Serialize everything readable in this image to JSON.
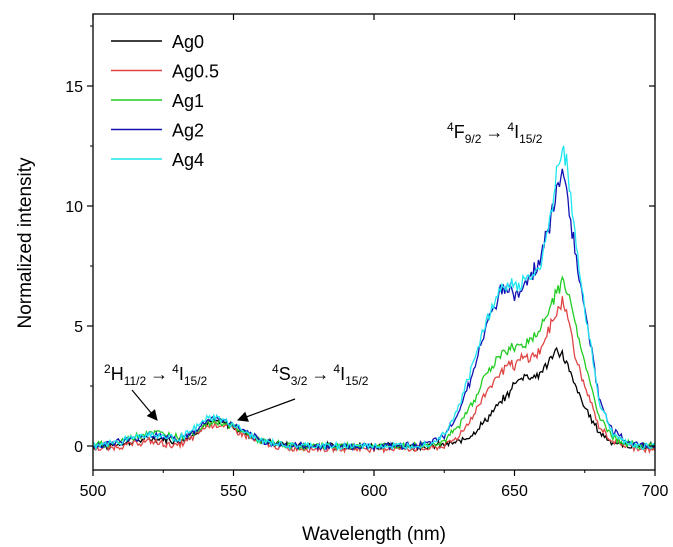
{
  "chart_data": {
    "type": "line",
    "xlabel": "Wavelength (nm)",
    "ylabel": "Normalized intensity",
    "xlim": [
      500,
      700
    ],
    "ylim": [
      -1,
      18
    ],
    "xticks": [
      500,
      550,
      600,
      650,
      700
    ],
    "yticks": [
      0,
      5,
      10,
      15
    ],
    "tick_labels_x": [
      "500",
      "550",
      "600",
      "650",
      "700"
    ],
    "tick_labels_y": [
      "0",
      "5",
      "10",
      "15"
    ],
    "grid": false,
    "legend_position": "top-left",
    "x": [
      500,
      505,
      510,
      515,
      520,
      525,
      530,
      535,
      540,
      543,
      545,
      550,
      555,
      560,
      565,
      570,
      575,
      580,
      590,
      600,
      610,
      620,
      625,
      630,
      635,
      640,
      645,
      648,
      650,
      652,
      655,
      658,
      660,
      663,
      665,
      667,
      668,
      670,
      672,
      675,
      678,
      680,
      685,
      690,
      695,
      700
    ],
    "series": [
      {
        "name": "Ag0",
        "color": "#000000",
        "values": [
          0.0,
          0.0,
          0.1,
          0.2,
          0.3,
          0.3,
          0.2,
          0.4,
          0.9,
          1.0,
          1.0,
          0.8,
          0.5,
          0.2,
          0.1,
          0.0,
          0.0,
          0.0,
          0.0,
          0.0,
          0.0,
          0.0,
          0.05,
          0.15,
          0.5,
          1.1,
          1.8,
          2.2,
          2.6,
          2.85,
          2.95,
          2.9,
          3.2,
          3.6,
          3.9,
          3.85,
          3.6,
          3.0,
          2.4,
          1.6,
          1.0,
          0.6,
          0.15,
          0.0,
          0.0,
          0.0
        ]
      },
      {
        "name": "Ag0.5",
        "color": "#e04545",
        "values": [
          -0.1,
          -0.1,
          0.0,
          0.1,
          0.2,
          0.1,
          0.0,
          0.3,
          0.8,
          0.9,
          0.9,
          0.7,
          0.4,
          0.1,
          0.0,
          -0.1,
          -0.1,
          -0.1,
          -0.1,
          -0.1,
          -0.1,
          -0.1,
          0.0,
          0.4,
          1.2,
          2.3,
          3.1,
          3.4,
          3.3,
          3.6,
          3.7,
          3.8,
          4.2,
          5.0,
          5.6,
          6.1,
          5.8,
          4.8,
          3.6,
          2.5,
          1.5,
          0.8,
          0.2,
          0.0,
          -0.1,
          -0.2
        ]
      },
      {
        "name": "Ag1",
        "color": "#22cc22",
        "values": [
          0.0,
          0.1,
          0.2,
          0.4,
          0.6,
          0.5,
          0.4,
          0.5,
          0.9,
          1.0,
          1.0,
          0.8,
          0.5,
          0.2,
          0.1,
          0.0,
          0.0,
          0.0,
          0.0,
          0.0,
          0.0,
          0.05,
          0.2,
          0.8,
          1.8,
          3.0,
          3.8,
          4.0,
          4.1,
          4.2,
          4.4,
          4.6,
          5.0,
          5.8,
          6.5,
          6.9,
          6.7,
          6.0,
          4.8,
          3.5,
          2.2,
          1.2,
          0.4,
          0.1,
          0.0,
          0.0
        ]
      },
      {
        "name": "Ag2",
        "color": "#1212b4",
        "values": [
          0.0,
          0.1,
          0.2,
          0.3,
          0.5,
          0.4,
          0.3,
          0.5,
          1.0,
          1.2,
          1.1,
          0.9,
          0.5,
          0.2,
          0.1,
          0.0,
          0.0,
          0.0,
          0.0,
          0.0,
          0.0,
          0.1,
          0.4,
          1.4,
          3.0,
          5.0,
          6.4,
          6.6,
          6.3,
          6.5,
          7.0,
          7.4,
          8.2,
          9.5,
          10.6,
          11.3,
          10.9,
          9.5,
          7.8,
          5.6,
          3.6,
          2.0,
          0.6,
          0.2,
          0.0,
          0.0
        ]
      },
      {
        "name": "Ag4",
        "color": "#1ee6f0",
        "values": [
          0.0,
          0.1,
          0.2,
          0.4,
          0.5,
          0.4,
          0.3,
          0.6,
          1.1,
          1.2,
          1.1,
          0.9,
          0.5,
          0.2,
          0.1,
          0.0,
          0.0,
          0.0,
          0.0,
          0.0,
          0.0,
          0.1,
          0.5,
          1.6,
          3.3,
          5.2,
          6.6,
          6.8,
          6.6,
          6.7,
          7.0,
          7.2,
          8.0,
          9.6,
          11.2,
          12.6,
          12.2,
          10.4,
          8.2,
          5.8,
          3.6,
          1.9,
          0.5,
          0.1,
          0.0,
          0.0
        ]
      }
    ],
    "annotations": [
      {
        "text": "²H₁₁/₂ → ⁴I₁₅/₂",
        "label_sup1": "2",
        "label_main1": "H",
        "label_sub1": "11/2",
        "arrow": "→",
        "label_sup2": "4",
        "label_main2": "I",
        "label_sub2": "15/2",
        "arrow_target": [
          527,
          0.7
        ]
      },
      {
        "text": "⁴S₃/₂ → ⁴I₁₅/₂",
        "label_sup1": "4",
        "label_main1": "S",
        "label_sub1": "3/2",
        "arrow": "→",
        "label_sup2": "4",
        "label_main2": "I",
        "label_sub2": "15/2",
        "arrow_target": [
          547,
          1.2
        ]
      },
      {
        "text": "⁴F₉/₂ → ⁴I₁₅/₂",
        "label_sup1": "4",
        "label_main1": "F",
        "label_sub1": "9/2",
        "arrow": "→",
        "label_sup2": "4",
        "label_main2": "I",
        "label_sub2": "15/2"
      }
    ]
  }
}
